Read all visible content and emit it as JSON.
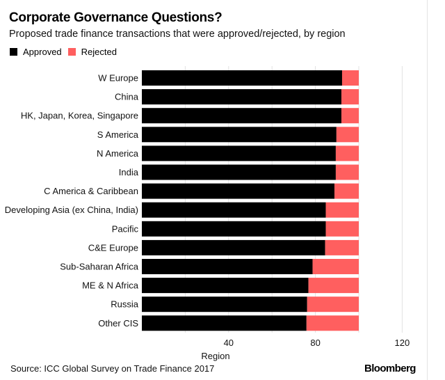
{
  "header": {
    "title": "Corporate Governance Questions?",
    "subtitle": "Proposed trade finance transactions that were approved/rejected, by region"
  },
  "footer": {
    "source": "Source: ICC Global Survey on Trade Finance 2017",
    "brand": "Bloomberg"
  },
  "chart_data": {
    "type": "bar",
    "orientation": "horizontal",
    "stacked": true,
    "title": "Corporate Governance Questions?",
    "subtitle": "Proposed trade finance transactions that were approved/rejected, by region",
    "xlabel": "Region",
    "ylabel": "",
    "xlim": [
      0,
      120
    ],
    "xticks": [
      20,
      40,
      60,
      80,
      100,
      120
    ],
    "xtick_labels": [
      "",
      "40",
      "",
      "80",
      "",
      "120"
    ],
    "grid": true,
    "legend_position": "top-left",
    "categories": [
      "W Europe",
      "China",
      "HK, Japan, Korea, Singapore",
      "S America",
      "N America",
      "India",
      "C America & Caribbean",
      "Developing Asia (ex China, India)",
      "Pacific",
      "C&E Europe",
      "Sub-Saharan Africa",
      "ME & N Africa",
      "Russia",
      "Other CIS"
    ],
    "series": [
      {
        "name": "Approved",
        "color": "#000000",
        "values": [
          92.3,
          92,
          92,
          89.7,
          89.4,
          89.4,
          88.8,
          84.8,
          84.8,
          84.5,
          78.7,
          76.8,
          76.2,
          75.9
        ]
      },
      {
        "name": "Rejected",
        "color": "#ff5f5f",
        "values": [
          7.7,
          8,
          8,
          10.3,
          10.6,
          10.6,
          11.2,
          15.2,
          15.2,
          15.5,
          21.3,
          23.2,
          23.8,
          24.1
        ]
      }
    ]
  }
}
